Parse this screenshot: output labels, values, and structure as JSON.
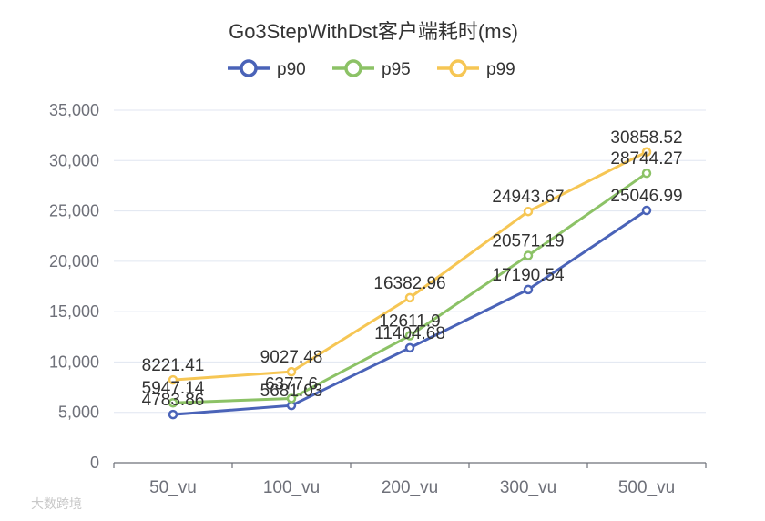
{
  "chart_data": {
    "type": "line",
    "title": "Go3StepWithDst客户端耗时(ms)",
    "categories": [
      "50_vu",
      "100_vu",
      "200_vu",
      "300_vu",
      "500_vu"
    ],
    "series": [
      {
        "name": "p90",
        "color": "#4a63b8",
        "values": [
          4783.86,
          5681.03,
          11404.68,
          17190.54,
          25046.99
        ],
        "labels": [
          "4783.86",
          "5681.03",
          "11404.68",
          "17190.54",
          "25046.99"
        ]
      },
      {
        "name": "p95",
        "color": "#8cc266",
        "values": [
          5947.14,
          6377.6,
          12611.9,
          20571.19,
          28744.27
        ],
        "labels": [
          "5947.14",
          "6377.6",
          "12611.9",
          "20571.19",
          "28744.27"
        ]
      },
      {
        "name": "p99",
        "color": "#f6c654",
        "values": [
          8221.41,
          9027.48,
          16382.96,
          24943.67,
          30858.52
        ],
        "labels": [
          "8221.41",
          "9027.48",
          "16382.96",
          "24943.67",
          "30858.52"
        ]
      }
    ],
    "ylim": [
      0,
      35000
    ],
    "yticks": [
      "0",
      "5,000",
      "10,000",
      "15,000",
      "20,000",
      "25,000",
      "30,000",
      "35,000"
    ],
    "xlabel": "",
    "ylabel": "",
    "grid": true,
    "legend_position": "top-center"
  },
  "watermark": "大数跨境"
}
